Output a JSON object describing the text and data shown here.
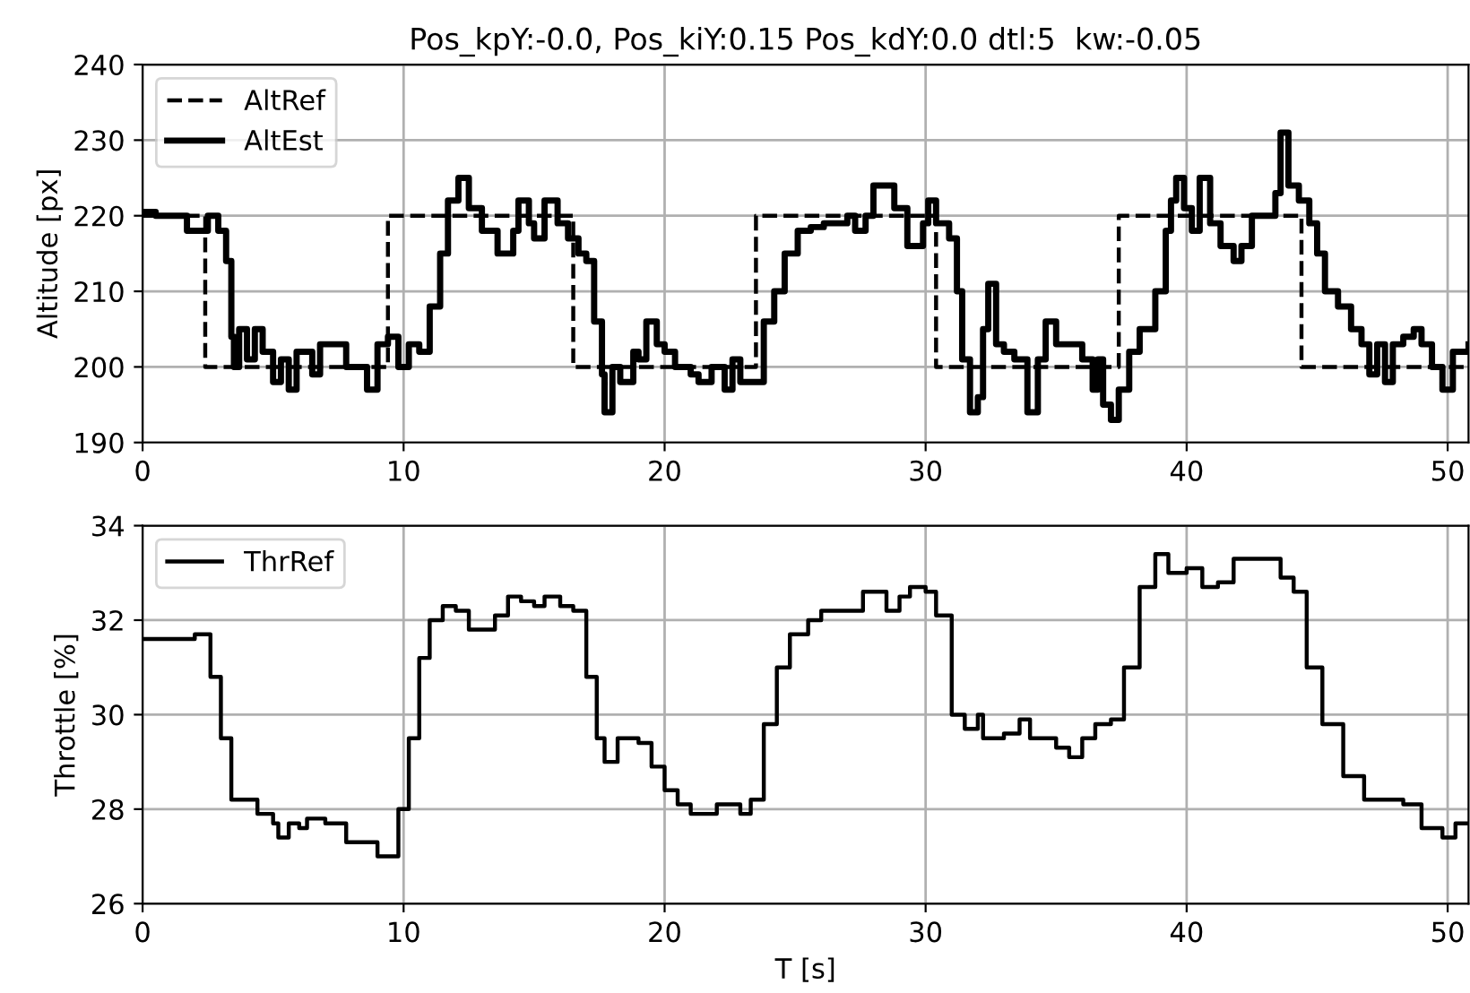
{
  "chart_data": [
    {
      "type": "step",
      "title": "Pos_kpY:-0.0, Pos_kiY:0.15 Pos_kdY:0.0 dtl:5  kw:-0.05",
      "ylabel": "Altitude [px]",
      "xlim": [
        0,
        50.8
      ],
      "xticks": [
        0,
        10,
        20,
        30,
        40,
        50
      ],
      "ylim": [
        190,
        240
      ],
      "yticks": [
        190,
        200,
        210,
        220,
        230,
        240
      ],
      "grid": true,
      "legend": "top left",
      "series": [
        {
          "name": "AltRef",
          "color": "#000000",
          "line_style": "dashed",
          "x": [
            0,
            2.4,
            9.4,
            16.5,
            23.5,
            30.4,
            37.4,
            44.4,
            50.8
          ],
          "values": [
            220,
            200,
            220,
            200,
            220,
            200,
            220,
            200,
            200
          ]
        },
        {
          "name": "AltEst",
          "color": "#000000",
          "line_style": "solid",
          "x": [
            0,
            0.5,
            1.7,
            2.5,
            2.9,
            3.2,
            3.4,
            3.5,
            3.7,
            4.0,
            4.3,
            4.6,
            5.0,
            5.3,
            5.6,
            5.9,
            6.5,
            6.8,
            7.3,
            7.8,
            8.3,
            8.6,
            9.0,
            9.4,
            9.8,
            10.2,
            10.6,
            11.0,
            11.4,
            11.7,
            12.1,
            12.5,
            13.0,
            13.6,
            14.2,
            14.4,
            14.8,
            15.0,
            15.4,
            15.9,
            16.3,
            16.7,
            17.0,
            17.3,
            17.6,
            17.7,
            18.0,
            18.3,
            18.8,
            19.0,
            19.3,
            19.7,
            20.0,
            20.4,
            21.0,
            21.3,
            21.8,
            22.3,
            22.6,
            22.9,
            23.5,
            23.8,
            24.2,
            24.6,
            25.1,
            25.6,
            26.1,
            27.0,
            27.3,
            27.7,
            28.0,
            28.6,
            28.8,
            29.3,
            29.9,
            30.1,
            30.4,
            30.9,
            31.1,
            31.2,
            31.4,
            31.7,
            32.0,
            32.2,
            32.4,
            32.7,
            33.0,
            33.4,
            33.9,
            34.3,
            34.6,
            35.0,
            35.6,
            36.0,
            36.4,
            36.6,
            36.8,
            37.1,
            37.4,
            37.8,
            38.2,
            38.6,
            38.8,
            39.2,
            39.4,
            39.6,
            39.9,
            40.2,
            40.5,
            40.9,
            41.3,
            41.8,
            42.1,
            42.5,
            43.0,
            43.4,
            43.6,
            43.9,
            44.3,
            44.7,
            45.0,
            45.3,
            45.8,
            46.3,
            46.7,
            47.0,
            47.3,
            47.6,
            47.9,
            48.3,
            48.7,
            49.0,
            49.4,
            49.8,
            50.2,
            50.8
          ],
          "values": [
            220.5,
            220,
            218,
            220,
            218,
            214,
            204,
            200,
            205,
            201,
            205,
            202,
            198,
            201,
            197,
            202,
            199,
            203,
            203,
            200,
            200,
            197,
            203,
            204,
            200,
            203,
            202,
            208,
            215,
            222,
            225,
            221,
            218,
            215,
            218,
            222,
            219,
            217,
            222,
            219,
            217,
            215,
            214,
            206,
            199,
            194,
            200,
            198,
            202,
            201,
            206,
            203,
            202,
            200,
            199,
            198,
            200,
            197,
            201,
            198,
            198,
            206,
            210,
            215,
            218,
            218.5,
            219,
            220,
            218,
            220,
            224,
            224,
            221,
            216,
            219,
            222,
            219,
            217,
            217,
            210,
            201,
            194,
            196,
            205,
            211,
            203,
            202,
            201,
            194,
            201,
            206,
            203,
            203,
            201,
            197,
            201,
            195,
            193,
            197,
            202,
            205,
            205,
            210,
            218,
            222,
            225,
            221,
            218,
            225,
            219,
            216,
            214,
            216,
            220,
            220,
            223,
            231,
            224,
            222,
            219,
            215,
            210,
            208,
            205,
            203,
            199,
            203,
            198,
            203,
            204,
            205,
            203,
            200,
            197,
            202,
            203
          ]
        }
      ]
    },
    {
      "type": "step",
      "xlabel": "T [s]",
      "ylabel": "Throttle [%]",
      "xlim": [
        0,
        50.8
      ],
      "xticks": [
        0,
        10,
        20,
        30,
        40,
        50
      ],
      "ylim": [
        26,
        34
      ],
      "yticks": [
        26,
        28,
        30,
        32,
        34
      ],
      "grid": true,
      "legend": "top left",
      "series": [
        {
          "name": "ThrRef",
          "color": "#000000",
          "line_style": "solid",
          "x": [
            0,
            1.5,
            2.0,
            2.3,
            2.6,
            3.0,
            3.4,
            3.9,
            4.4,
            5.0,
            5.2,
            5.6,
            6.0,
            6.3,
            7.0,
            7.8,
            8.5,
            9.0,
            9.4,
            9.8,
            10.2,
            10.6,
            11.0,
            11.5,
            12.0,
            12.5,
            13.0,
            13.5,
            14.0,
            14.5,
            15.0,
            15.4,
            16.0,
            16.5,
            17.0,
            17.4,
            17.7,
            18.2,
            19.0,
            19.5,
            20.0,
            20.5,
            21.0,
            22.0,
            22.5,
            22.9,
            23.3,
            23.8,
            24.3,
            24.8,
            25.5,
            26.0,
            27.0,
            27.6,
            28.5,
            29.0,
            29.4,
            30.0,
            30.4,
            31.0,
            31.5,
            32.0,
            32.2,
            33.0,
            33.6,
            34.0,
            35.0,
            35.5,
            36.0,
            36.5,
            37.1,
            37.6,
            38.2,
            38.8,
            39.3,
            40.0,
            40.6,
            41.2,
            41.8,
            43.3,
            43.6,
            44.1,
            44.6,
            45.2,
            46.0,
            46.8,
            47.4,
            48.3,
            49.0,
            49.8,
            50.3,
            50.8
          ],
          "values": [
            31.6,
            31.6,
            31.7,
            31.7,
            30.8,
            29.5,
            28.2,
            28.2,
            27.9,
            27.7,
            27.4,
            27.7,
            27.6,
            27.8,
            27.7,
            27.3,
            27.3,
            27.0,
            27.0,
            28.0,
            29.5,
            31.2,
            32.0,
            32.3,
            32.2,
            31.8,
            31.8,
            32.1,
            32.5,
            32.4,
            32.3,
            32.5,
            32.3,
            32.2,
            30.8,
            29.5,
            29.0,
            29.5,
            29.4,
            28.9,
            28.4,
            28.1,
            27.9,
            28.1,
            28.1,
            27.9,
            28.2,
            29.8,
            31.0,
            31.7,
            32.0,
            32.2,
            32.2,
            32.6,
            32.2,
            32.5,
            32.7,
            32.6,
            32.1,
            30.0,
            29.7,
            30.0,
            29.5,
            29.6,
            29.9,
            29.5,
            29.3,
            29.1,
            29.5,
            29.8,
            29.9,
            31.0,
            32.7,
            33.4,
            33.0,
            33.1,
            32.7,
            32.8,
            33.3,
            33.3,
            32.9,
            32.6,
            31.0,
            29.8,
            28.7,
            28.2,
            28.2,
            28.1,
            27.6,
            27.4,
            27.7,
            27.7
          ]
        }
      ]
    }
  ]
}
